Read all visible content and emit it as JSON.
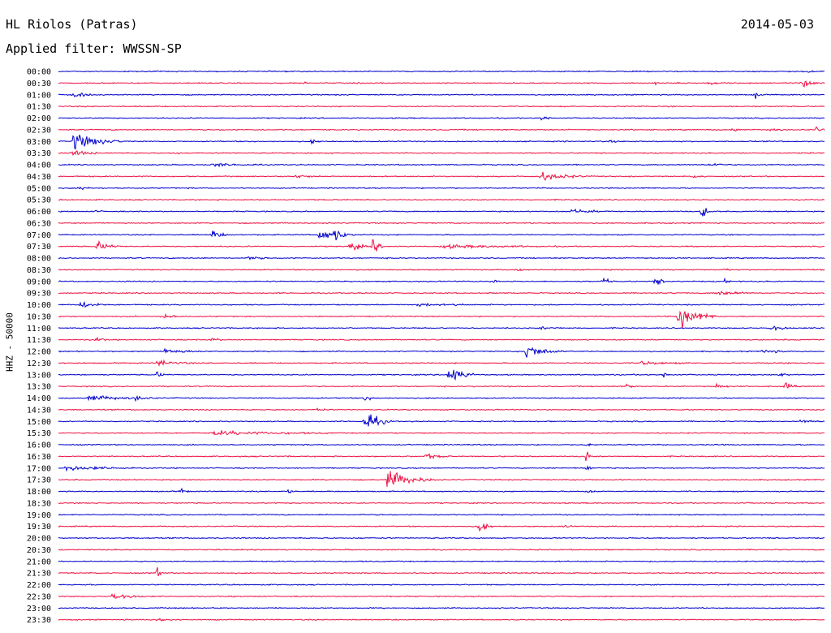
{
  "header": {
    "station": "HL Riolos (Patras)",
    "date": "2014-05-03",
    "filter": "Applied filter: WWSSN-SP"
  },
  "chart_data": {
    "type": "line",
    "title": "HL Riolos (Patras)",
    "ylabel": "HHZ - 50000",
    "trace_colors": [
      "#0000cc",
      "#ee1144"
    ],
    "rows": [
      {
        "label": "00:00",
        "events": [
          [
            0.98,
            0.3,
            0.5
          ]
        ]
      },
      {
        "label": "00:30",
        "events": [
          [
            0.32,
            0.2,
            0.5
          ],
          [
            0.78,
            0.2,
            0.5
          ],
          [
            0.85,
            0.3,
            1
          ],
          [
            0.97,
            1,
            2
          ]
        ]
      },
      {
        "label": "01:00",
        "events": [
          [
            0.02,
            0.4,
            2
          ],
          [
            0.91,
            0.6,
            0.6
          ]
        ]
      },
      {
        "label": "01:30",
        "events": []
      },
      {
        "label": "02:00",
        "events": [
          [
            0.63,
            0.3,
            1.5
          ]
        ]
      },
      {
        "label": "02:30",
        "events": [
          [
            0.88,
            0.3,
            1
          ],
          [
            0.93,
            0.3,
            1
          ],
          [
            0.99,
            0.5,
            1
          ]
        ]
      },
      {
        "label": "03:00",
        "events": [
          [
            0.02,
            1.5,
            4
          ],
          [
            0.33,
            0.3,
            1
          ],
          [
            0.72,
            0.2,
            1
          ]
        ]
      },
      {
        "label": "03:30",
        "events": [
          [
            0.02,
            0.6,
            2
          ],
          [
            0.15,
            0.2,
            1
          ]
        ]
      },
      {
        "label": "04:00",
        "events": [
          [
            0.2,
            0.3,
            4
          ],
          [
            0.85,
            0.3,
            2
          ]
        ]
      },
      {
        "label": "04:30",
        "events": [
          [
            0.31,
            0.3,
            2
          ],
          [
            0.63,
            0.7,
            4
          ],
          [
            0.83,
            0.3,
            1
          ]
        ]
      },
      {
        "label": "05:00",
        "events": [
          [
            0.03,
            0.5,
            1
          ]
        ]
      },
      {
        "label": "05:30",
        "events": []
      },
      {
        "label": "06:00",
        "events": [
          [
            0.05,
            0.3,
            0.5
          ],
          [
            0.67,
            0.4,
            3
          ],
          [
            0.84,
            1.2,
            1
          ]
        ]
      },
      {
        "label": "06:30",
        "events": []
      },
      {
        "label": "07:00",
        "events": [
          [
            0.2,
            0.8,
            1.5
          ],
          [
            0.34,
            0.8,
            3
          ],
          [
            0.36,
            1.3,
            1
          ]
        ]
      },
      {
        "label": "07:30",
        "events": [
          [
            0.05,
            0.9,
            2
          ],
          [
            0.38,
            1,
            1.5
          ],
          [
            0.41,
            1.3,
            1
          ],
          [
            0.5,
            0.3,
            10
          ]
        ]
      },
      {
        "label": "08:00",
        "events": [
          [
            0.25,
            0.3,
            2
          ]
        ]
      },
      {
        "label": "08:30",
        "events": [
          [
            0.6,
            0.5,
            0.5
          ],
          [
            0.87,
            0.5,
            0.5
          ]
        ]
      },
      {
        "label": "09:00",
        "events": [
          [
            0.57,
            0.5,
            0.5
          ],
          [
            0.71,
            0.7,
            1
          ],
          [
            0.78,
            0.8,
            1
          ],
          [
            0.87,
            0.5,
            0.5
          ]
        ]
      },
      {
        "label": "09:30",
        "events": [
          [
            0.86,
            0.5,
            3
          ]
        ]
      },
      {
        "label": "10:00",
        "events": [
          [
            0.03,
            0.6,
            2
          ],
          [
            0.47,
            0.3,
            3
          ],
          [
            0.52,
            0.5,
            0.5
          ]
        ]
      },
      {
        "label": "10:30",
        "events": [
          [
            0.14,
            0.8,
            1
          ],
          [
            0.81,
            2.2,
            3
          ]
        ]
      },
      {
        "label": "11:00",
        "events": [
          [
            0.63,
            0.2,
            2
          ],
          [
            0.93,
            0.5,
            2
          ]
        ]
      },
      {
        "label": "11:30",
        "events": [
          [
            0.05,
            0.4,
            1
          ],
          [
            0.2,
            0.4,
            1
          ]
        ]
      },
      {
        "label": "12:00",
        "events": [
          [
            0.14,
            0.5,
            3
          ],
          [
            0.61,
            1.3,
            3
          ],
          [
            0.92,
            0.4,
            2
          ]
        ]
      },
      {
        "label": "12:30",
        "events": [
          [
            0.13,
            0.5,
            3
          ],
          [
            0.76,
            0.3,
            4
          ]
        ]
      },
      {
        "label": "13:00",
        "events": [
          [
            0.13,
            0.8,
            0.5
          ],
          [
            0.51,
            2,
            2
          ],
          [
            0.79,
            0.5,
            1
          ],
          [
            0.94,
            0.4,
            1
          ]
        ]
      },
      {
        "label": "13:30",
        "events": [
          [
            0.74,
            0.5,
            1
          ],
          [
            0.86,
            0.6,
            1
          ],
          [
            0.95,
            0.6,
            1
          ]
        ]
      },
      {
        "label": "14:00",
        "events": [
          [
            0.04,
            0.6,
            4
          ],
          [
            0.1,
            0.4,
            2
          ],
          [
            0.4,
            0.5,
            1
          ]
        ]
      },
      {
        "label": "14:30",
        "events": [
          [
            0.34,
            0.8,
            0.5
          ]
        ]
      },
      {
        "label": "15:00",
        "events": [
          [
            0.4,
            1.8,
            2.2
          ],
          [
            0.97,
            0.3,
            2
          ]
        ]
      },
      {
        "label": "15:30",
        "events": [
          [
            0.2,
            0.4,
            10
          ]
        ]
      },
      {
        "label": "16:00",
        "events": [
          [
            0.69,
            0.6,
            0.5
          ]
        ]
      },
      {
        "label": "16:30",
        "events": [
          [
            0.48,
            0.5,
            2
          ],
          [
            0.69,
            1.2,
            0.5
          ]
        ]
      },
      {
        "label": "17:00",
        "events": [
          [
            0.01,
            0.4,
            6
          ],
          [
            0.69,
            0.8,
            0.5
          ]
        ]
      },
      {
        "label": "17:30",
        "events": [
          [
            0.43,
            1.6,
            4
          ]
        ]
      },
      {
        "label": "18:00",
        "events": [
          [
            0.16,
            0.4,
            1
          ],
          [
            0.3,
            0.8,
            0.5
          ],
          [
            0.69,
            0.3,
            1
          ]
        ]
      },
      {
        "label": "18:30",
        "events": []
      },
      {
        "label": "19:00",
        "events": []
      },
      {
        "label": "19:30",
        "events": [
          [
            0.55,
            1.2,
            1
          ],
          [
            0.66,
            0.3,
            1
          ]
        ]
      },
      {
        "label": "20:00",
        "events": []
      },
      {
        "label": "20:30",
        "events": []
      },
      {
        "label": "21:00",
        "events": []
      },
      {
        "label": "21:30",
        "events": [
          [
            0.13,
            1.4,
            0.5
          ]
        ]
      },
      {
        "label": "22:00",
        "events": []
      },
      {
        "label": "22:30",
        "events": [
          [
            0.07,
            0.6,
            3
          ]
        ]
      },
      {
        "label": "23:00",
        "events": []
      },
      {
        "label": "23:30",
        "events": [
          [
            0.13,
            0.3,
            2
          ]
        ]
      }
    ]
  }
}
